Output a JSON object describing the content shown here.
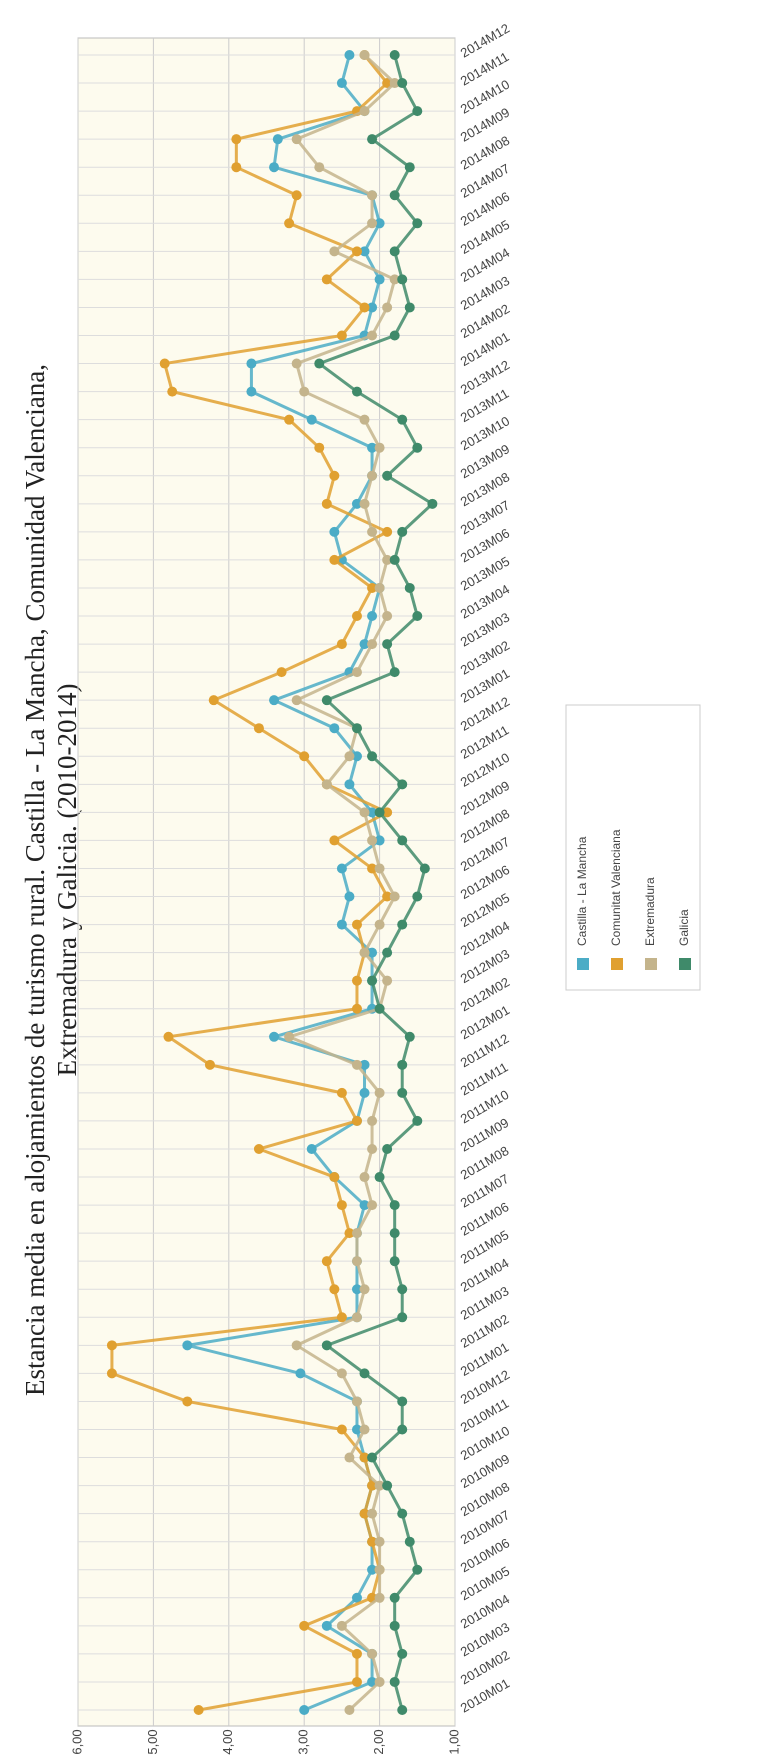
{
  "chart_data": {
    "type": "line",
    "title": "Estancia media en alojamientos de turismo rural. Castilla - La Mancha, Comunidad Valenciana,",
    "subtitle": "Extremadura y Galicia. (2010-2014)",
    "categories": [
      "2010M01",
      "2010M02",
      "2010M03",
      "2010M04",
      "2010M05",
      "2010M06",
      "2010M07",
      "2010M08",
      "2010M09",
      "2010M10",
      "2010M11",
      "2010M12",
      "2011M01",
      "2011M02",
      "2011M03",
      "2011M04",
      "2011M05",
      "2011M06",
      "2011M07",
      "2011M08",
      "2011M09",
      "2011M10",
      "2011M11",
      "2011M12",
      "2012M01",
      "2012M02",
      "2012M03",
      "2012M04",
      "2012M05",
      "2012M06",
      "2012M07",
      "2012M08",
      "2012M09",
      "2012M10",
      "2012M11",
      "2012M12",
      "2013M01",
      "2013M02",
      "2013M03",
      "2013M04",
      "2013M05",
      "2013M06",
      "2013M07",
      "2013M08",
      "2013M09",
      "2013M10",
      "2013M11",
      "2013M12",
      "2014M01",
      "2014M02",
      "2014M03",
      "2014M04",
      "2014M05",
      "2014M06",
      "2014M07",
      "2014M08",
      "2014M09",
      "2014M10",
      "2014M11",
      "2014M12"
    ],
    "series": [
      {
        "name": "Castilla - La Mancha",
        "color": "#4bacc6",
        "values": [
          3.0,
          2.1,
          2.1,
          2.7,
          2.3,
          2.1,
          2.1,
          2.2,
          2.1,
          2.2,
          2.3,
          2.3,
          3.05,
          4.55,
          2.3,
          2.3,
          2.3,
          2.3,
          2.2,
          2.6,
          2.9,
          2.3,
          2.2,
          2.2,
          3.4,
          2.1,
          2.1,
          2.1,
          2.5,
          2.4,
          2.5,
          2.0,
          2.1,
          2.4,
          2.3,
          2.6,
          3.4,
          2.4,
          2.2,
          2.1,
          2.0,
          2.5,
          2.6,
          2.3,
          2.1,
          2.1,
          2.9,
          3.7,
          3.7,
          2.2,
          2.1,
          2.0,
          2.2,
          2.0,
          2.1,
          3.4,
          3.35,
          2.2,
          2.5,
          2.4
        ]
      },
      {
        "name": "Comunitat Valenciana",
        "color": "#e0a030",
        "values": [
          4.4,
          2.3,
          2.3,
          3.0,
          2.1,
          2.0,
          2.1,
          2.2,
          2.1,
          2.2,
          2.5,
          4.55,
          5.55,
          5.55,
          2.5,
          2.6,
          2.7,
          2.4,
          2.5,
          2.6,
          3.6,
          2.3,
          2.5,
          4.25,
          4.8,
          2.3,
          2.3,
          2.2,
          2.3,
          1.9,
          2.1,
          2.6,
          1.9,
          2.7,
          3.0,
          3.6,
          4.2,
          3.3,
          2.5,
          2.3,
          2.1,
          2.6,
          1.9,
          2.7,
          2.6,
          2.8,
          3.2,
          4.75,
          4.85,
          2.5,
          2.2,
          2.7,
          2.3,
          3.2,
          3.1,
          3.9,
          3.9,
          2.3,
          1.9,
          2.2
        ]
      },
      {
        "name": "Extremadura",
        "color": "#c4b48c",
        "values": [
          2.4,
          2.0,
          2.1,
          2.5,
          2.0,
          2.0,
          2.0,
          2.1,
          2.0,
          2.4,
          2.2,
          2.3,
          2.5,
          3.1,
          2.3,
          2.2,
          2.3,
          2.3,
          2.1,
          2.2,
          2.1,
          2.1,
          2.0,
          2.3,
          3.2,
          2.0,
          1.9,
          2.2,
          2.0,
          1.8,
          2.0,
          2.1,
          2.2,
          2.7,
          2.4,
          2.3,
          3.1,
          2.3,
          2.1,
          1.9,
          2.0,
          1.9,
          2.1,
          2.2,
          2.1,
          2.0,
          2.2,
          3.0,
          3.1,
          2.1,
          1.9,
          1.8,
          2.6,
          2.1,
          2.1,
          2.8,
          3.1,
          2.2,
          1.8,
          2.2
        ]
      },
      {
        "name": "Galicia",
        "color": "#3f8a6a",
        "values": [
          1.7,
          1.8,
          1.7,
          1.8,
          1.8,
          1.5,
          1.6,
          1.7,
          1.9,
          2.1,
          1.7,
          1.7,
          2.2,
          2.7,
          1.7,
          1.7,
          1.8,
          1.8,
          1.8,
          2.0,
          1.9,
          1.5,
          1.7,
          1.7,
          1.6,
          2.0,
          2.1,
          1.9,
          1.7,
          1.5,
          1.4,
          1.7,
          2.0,
          1.7,
          2.1,
          2.3,
          2.7,
          1.8,
          1.9,
          1.5,
          1.6,
          1.8,
          1.7,
          1.3,
          1.9,
          1.5,
          1.7,
          2.3,
          2.8,
          1.8,
          1.6,
          1.7,
          1.8,
          1.5,
          1.8,
          1.6,
          2.1,
          1.5,
          1.7,
          1.8
        ]
      }
    ],
    "ylim": [
      1,
      6
    ],
    "yticks": [
      {
        "value": 1,
        "label": "1,00"
      },
      {
        "value": 2,
        "label": "2,00"
      },
      {
        "value": 3,
        "label": "3,00"
      },
      {
        "value": 4,
        "label": "4,00"
      },
      {
        "value": 5,
        "label": "5,00"
      },
      {
        "value": 6,
        "label": "6,00"
      }
    ],
    "grid": true
  }
}
